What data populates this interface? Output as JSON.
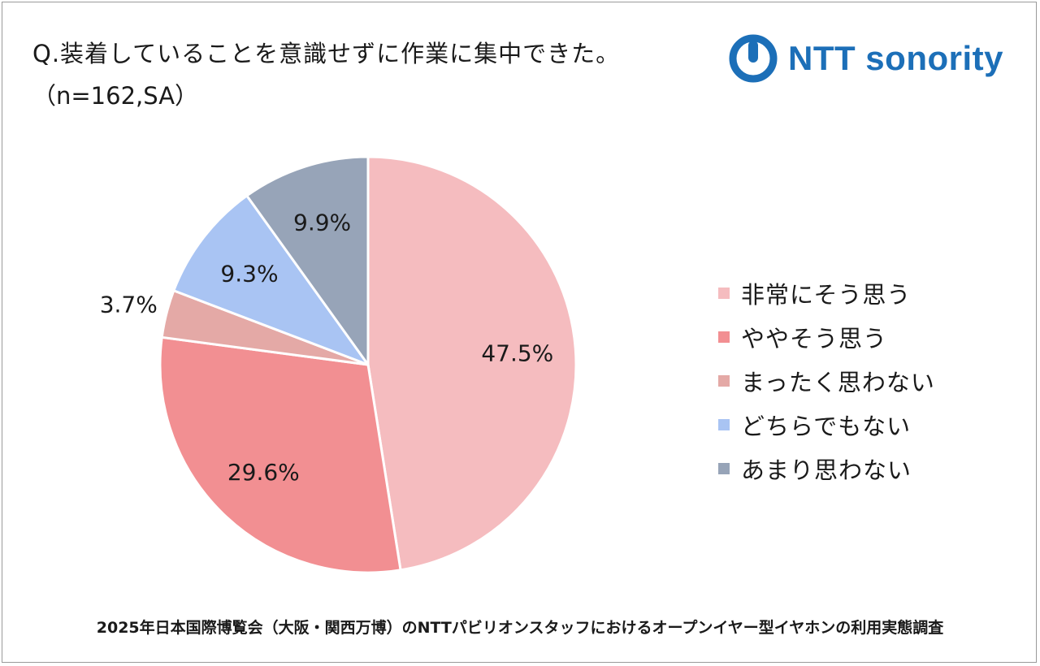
{
  "header": {
    "question": "Q.装着していることを意識せずに作業に集中できた。",
    "sample": "（n=162,SA）"
  },
  "logo": {
    "text": "NTT sonority",
    "icon": "ntt-logo-icon",
    "color": "#1c6fb8"
  },
  "footer": {
    "text": "2025年日本国際博覧会（大阪・関西万博）のNTTパビリオンスタッフにおけるオープンイヤー型イヤホンの利用実態調査"
  },
  "chart_data": {
    "type": "pie",
    "title": "Q.装着していることを意識せずに作業に集中できた。",
    "subtitle": "（n=162,SA）",
    "legend_position": "right",
    "start_angle": "12 o'clock",
    "direction": "clockwise",
    "slices": [
      {
        "label": "非常にそう思う",
        "value": 47.5,
        "display": "47.5%",
        "color": "#f5bcbf"
      },
      {
        "label": "ややそう思う",
        "value": 29.6,
        "display": "29.6%",
        "color": "#f28f92"
      },
      {
        "label": "まったく思わない",
        "value": 3.7,
        "display": "3.7%",
        "color": "#e4a9a6"
      },
      {
        "label": "どちらでもない",
        "value": 9.3,
        "display": "9.3%",
        "color": "#a9c4f3"
      },
      {
        "label": "あまり思わない",
        "value": 9.9,
        "display": "9.9%",
        "color": "#97a4b8"
      }
    ]
  }
}
